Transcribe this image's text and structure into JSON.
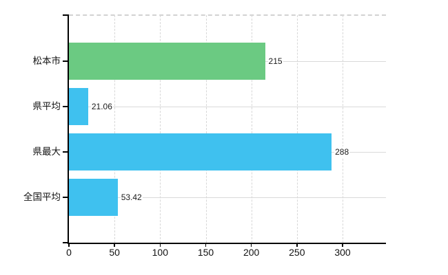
{
  "chart_data": {
    "type": "bar",
    "orientation": "horizontal",
    "title": "",
    "xlabel": "",
    "ylabel": "",
    "categories": [
      "松本市",
      "県平均",
      "県最大",
      "全国平均"
    ],
    "values": [
      215,
      21.06,
      288,
      53.42
    ],
    "value_labels": [
      "215",
      "21.06",
      "288",
      "53.42"
    ],
    "bar_colors": [
      "#6bca82",
      "#3fc1ef",
      "#3fc1ef",
      "#3fc1ef"
    ],
    "x_ticks": [
      0,
      50,
      100,
      150,
      200,
      250,
      300
    ],
    "x_tick_labels": [
      "0",
      "50",
      "100",
      "150",
      "200",
      "250",
      "300"
    ],
    "xlim": [
      0,
      347.7
    ],
    "grid": true,
    "legend": false,
    "axis_color": "#000000",
    "gridline_color": "#d9d9d9",
    "text_color": "#111111"
  }
}
